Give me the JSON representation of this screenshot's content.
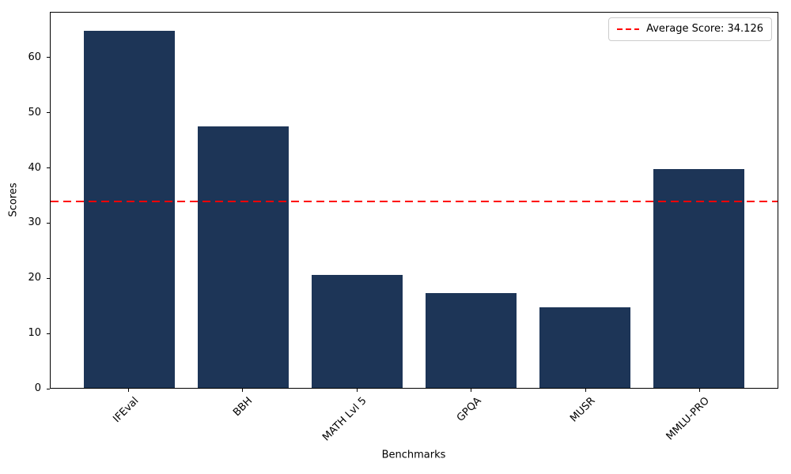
{
  "chart_data": {
    "type": "bar",
    "title": "",
    "xlabel": "Benchmarks",
    "ylabel": "Scores",
    "categories": [
      "IFEval",
      "BBH",
      "MATH Lvl 5",
      "GPQA",
      "MUSR",
      "MMLU-PRO"
    ],
    "values": [
      65.0,
      47.6,
      20.5,
      17.2,
      14.7,
      39.8
    ],
    "bar_color": "#1d3557",
    "yticks": [
      0,
      10,
      20,
      30,
      40,
      50,
      60
    ],
    "ylim": [
      0,
      68.3
    ],
    "grid": false,
    "legend_position": "upper right",
    "average_line": {
      "value": 34.126,
      "color": "#ff0000",
      "style": "dashed",
      "label": "Average Score: 34.126"
    }
  }
}
